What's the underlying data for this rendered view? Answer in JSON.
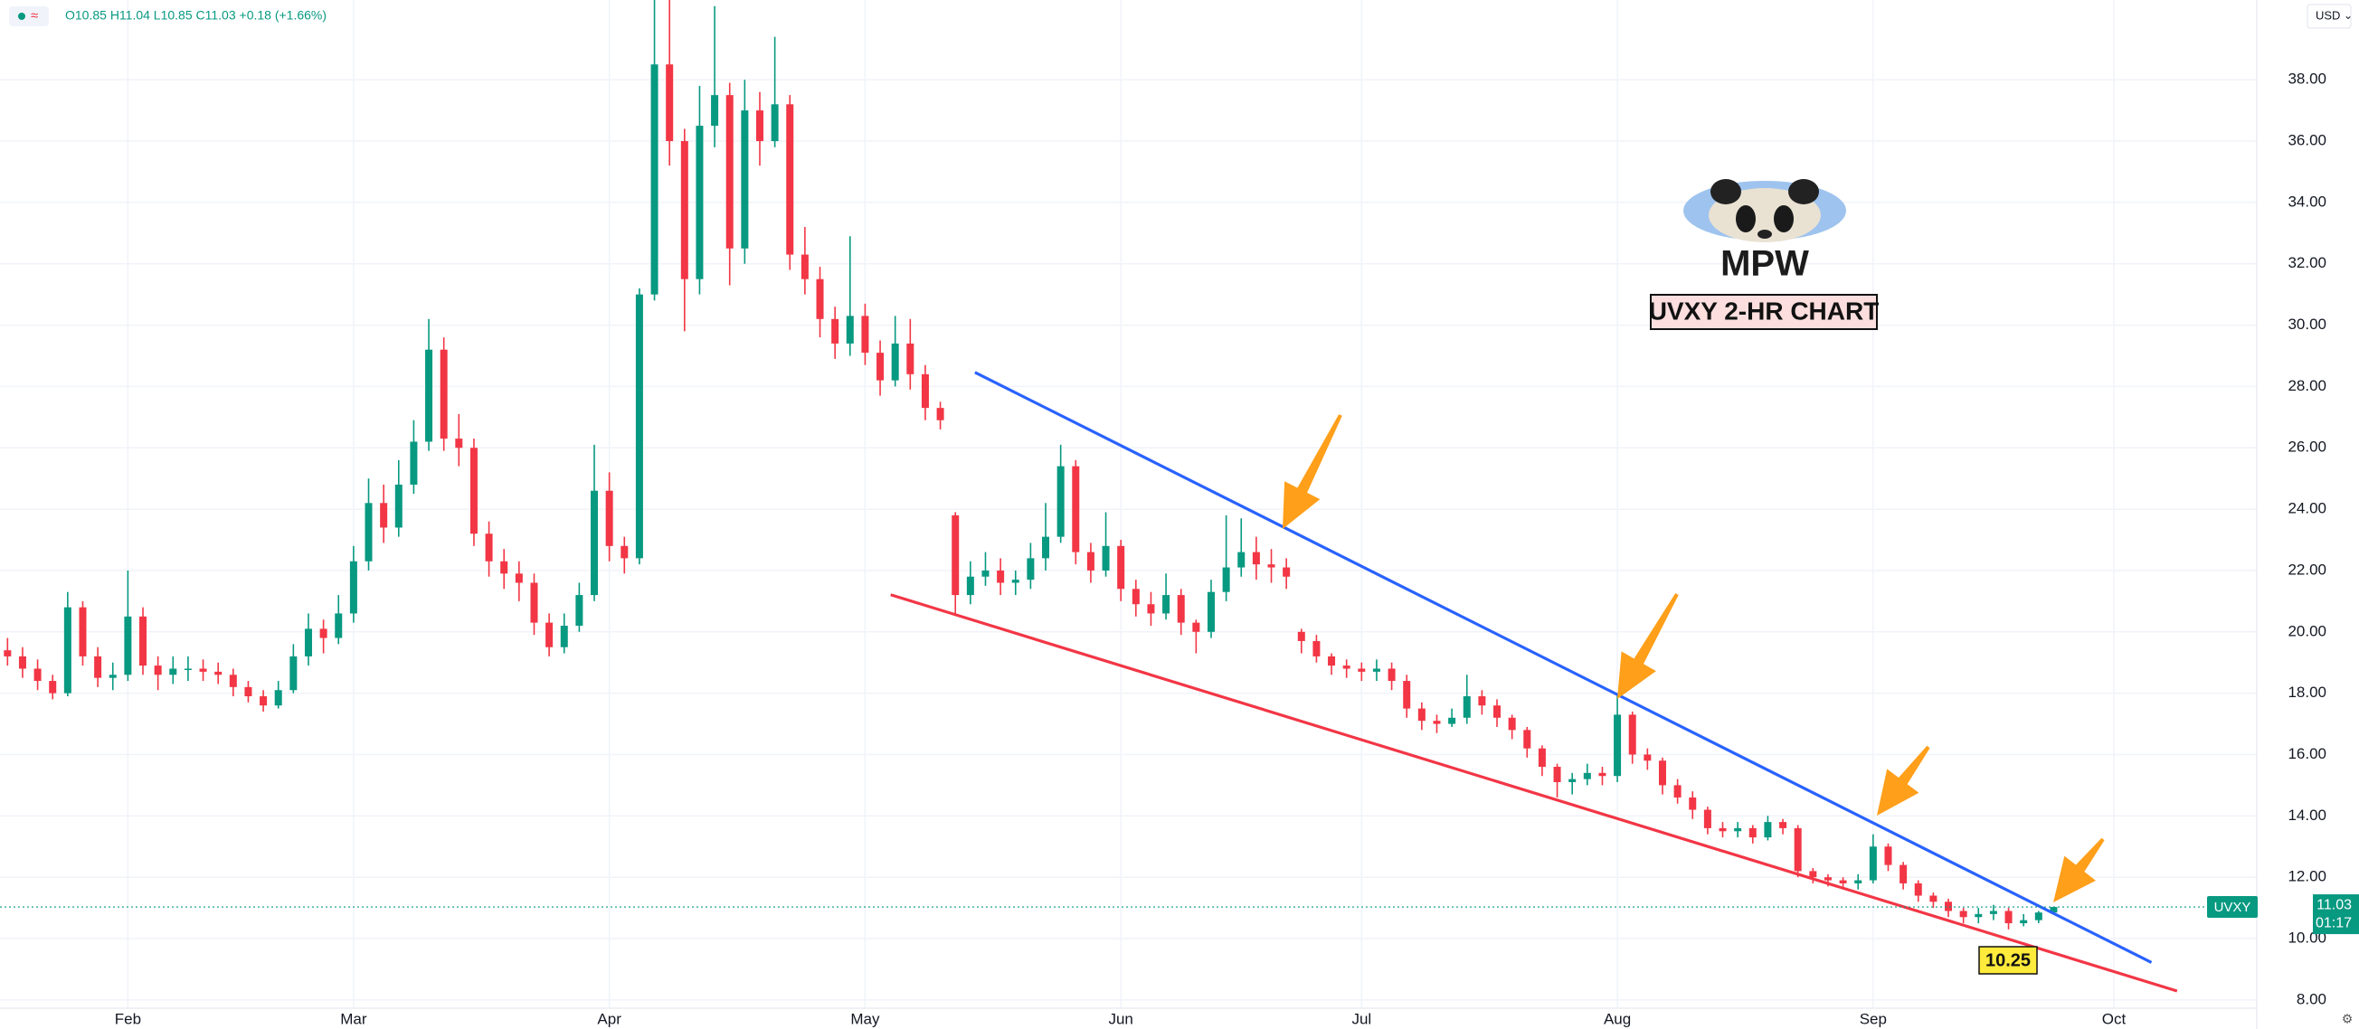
{
  "chart_data": {
    "type": "candlestick",
    "symbol": "UVXY",
    "currency": "USD",
    "ohlc_legend": "O10.85 H11.04 L10.85 C11.03 +0.18 (+1.66%)",
    "logo_text": "MPW",
    "chart_label": "UVXY 2-HR CHART",
    "low_label": "10.25",
    "last_price": 11.03,
    "countdown": "01:17",
    "up_color": "#089981",
    "down_color": "#f23645",
    "grid": true,
    "ylim": [
      7.73,
      40.6
    ],
    "yticks": [
      {
        "value": 8,
        "label": "8.00"
      },
      {
        "value": 10,
        "label": "10.00"
      },
      {
        "value": 12,
        "label": "12.00"
      },
      {
        "value": 14,
        "label": "14.00"
      },
      {
        "value": 16,
        "label": "16.00"
      },
      {
        "value": 18,
        "label": "18.00"
      },
      {
        "value": 20,
        "label": "20.00"
      },
      {
        "value": 22,
        "label": "22.00"
      },
      {
        "value": 24,
        "label": "24.00"
      },
      {
        "value": 26,
        "label": "26.00"
      },
      {
        "value": 28,
        "label": "28.00"
      },
      {
        "value": 30,
        "label": "30.00"
      },
      {
        "value": 32,
        "label": "32.00"
      },
      {
        "value": 34,
        "label": "34.00"
      },
      {
        "value": 36,
        "label": "36.00"
      },
      {
        "value": 38,
        "label": "38.00"
      }
    ],
    "categories": [
      null,
      null,
      null,
      null,
      null,
      null,
      null,
      null,
      "Feb",
      null,
      null,
      null,
      null,
      null,
      null,
      null,
      null,
      null,
      null,
      null,
      null,
      null,
      null,
      "Mar",
      null,
      null,
      null,
      null,
      null,
      null,
      null,
      null,
      null,
      null,
      null,
      null,
      null,
      null,
      null,
      null,
      "Apr",
      null,
      null,
      null,
      null,
      null,
      null,
      null,
      null,
      null,
      null,
      null,
      null,
      null,
      null,
      null,
      null,
      "May",
      null,
      null,
      null,
      null,
      null,
      null,
      null,
      null,
      null,
      null,
      null,
      null,
      null,
      null,
      null,
      null,
      "Jun",
      null,
      null,
      null,
      null,
      null,
      null,
      null,
      null,
      null,
      null,
      null,
      null,
      null,
      null,
      null,
      "Jul",
      null,
      null,
      null,
      null,
      null,
      null,
      null,
      null,
      null,
      null,
      null,
      null,
      null,
      null,
      null,
      null,
      "Aug",
      null,
      null,
      null,
      null,
      null,
      null,
      null,
      null,
      null,
      null,
      null,
      null,
      null,
      null,
      null,
      null,
      "Sep",
      null,
      null,
      null,
      null,
      null,
      null,
      null,
      null,
      null,
      null,
      null,
      null,
      null,
      null,
      null,
      "Oct",
      null,
      null,
      null,
      null,
      null,
      null,
      null,
      null,
      null
    ],
    "open": [
      19.4,
      19.2,
      18.8,
      18.4,
      18.0,
      20.8,
      19.2,
      18.5,
      18.6,
      20.5,
      18.9,
      18.6,
      18.8,
      18.8,
      18.7,
      18.6,
      18.2,
      17.9,
      17.6,
      18.1,
      19.2,
      20.1,
      19.8,
      20.6,
      22.3,
      24.2,
      23.4,
      24.8,
      26.2,
      29.2,
      26.3,
      26.0,
      23.2,
      22.3,
      21.9,
      21.6,
      20.3,
      19.5,
      20.2,
      21.2,
      24.6,
      22.8,
      22.4,
      31.0,
      38.5,
      36.0,
      31.5,
      36.5,
      37.5,
      32.5,
      37.0,
      36.0,
      37.2,
      32.3,
      31.5,
      30.2,
      29.4,
      30.3,
      29.1,
      28.2,
      29.4,
      28.4,
      27.3,
      23.8,
      21.2,
      21.8,
      22.0,
      21.6,
      21.7,
      22.4,
      23.1,
      25.4,
      22.6,
      22.0,
      22.8,
      21.4,
      20.9,
      20.6,
      21.2,
      20.3,
      20.0,
      21.3,
      22.1,
      22.6,
      22.2,
      22.1,
      20.0,
      19.7,
      19.2,
      18.9,
      18.8,
      18.7,
      18.8,
      18.4,
      17.5,
      17.1,
      17.0,
      17.2,
      17.9,
      17.6,
      17.2,
      16.8,
      16.2,
      15.6,
      15.1,
      15.2,
      15.4,
      15.3,
      17.3,
      16.0,
      15.8,
      15.0,
      14.6,
      14.2,
      13.6,
      13.5,
      13.6,
      13.3,
      13.8,
      13.6,
      12.2,
      12.0,
      11.9,
      11.8,
      11.9,
      13.0,
      12.4,
      11.8,
      11.4,
      11.2,
      10.9,
      10.7,
      10.8,
      10.9,
      10.5,
      10.6,
      10.85,
      null,
      null,
      null,
      null,
      null,
      null,
      null,
      null,
      null,
      null,
      null,
      null,
      null
    ],
    "high": [
      19.8,
      19.5,
      19.1,
      18.6,
      21.3,
      21.0,
      19.5,
      19.0,
      22.0,
      20.8,
      19.2,
      19.2,
      19.2,
      19.1,
      19.0,
      18.8,
      18.4,
      18.1,
      18.4,
      19.6,
      20.6,
      20.4,
      21.2,
      22.8,
      25.0,
      24.8,
      25.6,
      26.9,
      30.2,
      29.6,
      27.1,
      26.3,
      23.6,
      22.7,
      22.3,
      21.9,
      20.6,
      20.6,
      21.6,
      26.1,
      25.2,
      23.1,
      31.2,
      40.6,
      40.6,
      36.4,
      37.8,
      40.4,
      37.9,
      38.0,
      37.6,
      39.4,
      37.5,
      33.2,
      31.9,
      30.6,
      32.9,
      30.7,
      29.5,
      30.3,
      30.2,
      28.7,
      27.5,
      23.9,
      22.3,
      22.6,
      22.4,
      22.0,
      22.9,
      24.2,
      26.1,
      25.6,
      22.9,
      23.9,
      23.0,
      21.7,
      21.3,
      21.9,
      21.4,
      20.4,
      21.7,
      23.8,
      23.7,
      23.1,
      22.7,
      22.4,
      20.1,
      19.9,
      19.3,
      19.1,
      19.0,
      19.1,
      19.0,
      18.6,
      17.7,
      17.3,
      17.5,
      18.6,
      18.1,
      17.8,
      17.3,
      16.9,
      16.3,
      15.7,
      15.4,
      15.7,
      15.6,
      18.0,
      17.4,
      16.2,
      15.9,
      15.2,
      14.8,
      14.3,
      13.8,
      13.8,
      13.7,
      14.0,
      13.9,
      13.7,
      12.3,
      12.1,
      12.0,
      12.1,
      13.4,
      13.1,
      12.5,
      11.9,
      11.5,
      11.3,
      11.0,
      11.0,
      11.1,
      11.0,
      10.8,
      10.9,
      11.04,
      null,
      null,
      null,
      null,
      null,
      null,
      null,
      null,
      null,
      null,
      null,
      null,
      null
    ],
    "low": [
      18.9,
      18.5,
      18.1,
      17.8,
      17.9,
      18.9,
      18.2,
      18.1,
      18.4,
      18.6,
      18.1,
      18.3,
      18.4,
      18.4,
      18.3,
      17.9,
      17.7,
      17.4,
      17.5,
      18.0,
      18.9,
      19.3,
      19.6,
      20.3,
      22.0,
      22.9,
      23.1,
      24.5,
      25.9,
      25.9,
      25.4,
      22.8,
      21.8,
      21.4,
      21.0,
      19.9,
      19.2,
      19.3,
      20.0,
      21.0,
      22.3,
      21.9,
      22.2,
      30.8,
      35.2,
      29.8,
      31.0,
      35.8,
      31.3,
      32.0,
      35.2,
      35.8,
      31.8,
      31.0,
      29.6,
      28.9,
      29.0,
      28.7,
      27.7,
      28.0,
      27.9,
      26.9,
      26.6,
      20.6,
      20.9,
      21.5,
      21.2,
      21.2,
      21.4,
      22.0,
      22.9,
      22.2,
      21.6,
      21.8,
      21.0,
      20.5,
      20.2,
      20.4,
      19.9,
      19.3,
      19.8,
      21.0,
      21.8,
      21.7,
      21.6,
      21.4,
      19.3,
      19.0,
      18.6,
      18.5,
      18.4,
      18.4,
      18.1,
      17.2,
      16.8,
      16.7,
      16.9,
      17.0,
      17.3,
      16.9,
      16.5,
      15.9,
      15.3,
      14.6,
      14.7,
      15.0,
      15.0,
      15.1,
      15.7,
      15.5,
      14.7,
      14.4,
      13.9,
      13.4,
      13.3,
      13.3,
      13.1,
      13.2,
      13.4,
      12.0,
      11.8,
      11.7,
      11.6,
      11.6,
      11.8,
      12.2,
      11.6,
      11.2,
      11.0,
      10.7,
      10.5,
      10.5,
      10.6,
      10.3,
      10.4,
      10.5,
      10.85,
      null,
      null,
      null,
      null,
      null,
      null,
      null,
      null,
      null,
      null,
      null,
      null,
      null
    ],
    "close": [
      19.2,
      18.8,
      18.4,
      18.0,
      20.8,
      19.2,
      18.5,
      18.6,
      20.5,
      18.9,
      18.6,
      18.8,
      18.8,
      18.7,
      18.6,
      18.2,
      17.9,
      17.6,
      18.1,
      19.2,
      20.1,
      19.8,
      20.6,
      22.3,
      24.2,
      23.4,
      24.8,
      26.2,
      29.2,
      26.3,
      26.0,
      23.2,
      22.3,
      21.9,
      21.6,
      20.3,
      19.5,
      20.2,
      21.2,
      24.6,
      22.8,
      22.4,
      31.0,
      38.5,
      36.0,
      31.5,
      36.5,
      37.5,
      32.5,
      37.0,
      36.0,
      37.2,
      32.3,
      31.5,
      30.2,
      29.4,
      30.3,
      29.1,
      28.2,
      29.4,
      28.4,
      27.3,
      26.9,
      21.2,
      21.8,
      22.0,
      21.6,
      21.7,
      22.4,
      23.1,
      25.4,
      22.6,
      22.0,
      22.8,
      21.4,
      20.9,
      20.6,
      21.2,
      20.3,
      20.0,
      21.3,
      22.1,
      22.6,
      22.2,
      22.1,
      21.8,
      19.7,
      19.2,
      18.9,
      18.8,
      18.7,
      18.8,
      18.4,
      17.5,
      17.1,
      17.0,
      17.2,
      17.9,
      17.6,
      17.2,
      16.8,
      16.2,
      15.6,
      15.1,
      15.2,
      15.4,
      15.3,
      17.3,
      16.0,
      15.8,
      15.0,
      14.6,
      14.2,
      13.6,
      13.5,
      13.6,
      13.3,
      13.8,
      13.6,
      12.2,
      12.0,
      11.9,
      11.8,
      11.9,
      13.0,
      12.4,
      11.8,
      11.4,
      11.2,
      10.9,
      10.7,
      10.8,
      10.9,
      10.5,
      10.6,
      10.85,
      11.03,
      null,
      null,
      null,
      null,
      null,
      null,
      null,
      null,
      null,
      null,
      null,
      null,
      null
    ],
    "trendlines": [
      {
        "color": "#2962ff",
        "x": [
          64.3,
          142.5
        ],
        "y": [
          28.46,
          9.22
        ]
      },
      {
        "color": "#f23645",
        "x": [
          58.7,
          144.2
        ],
        "y": [
          21.21,
          8.29
        ]
      }
    ]
  }
}
